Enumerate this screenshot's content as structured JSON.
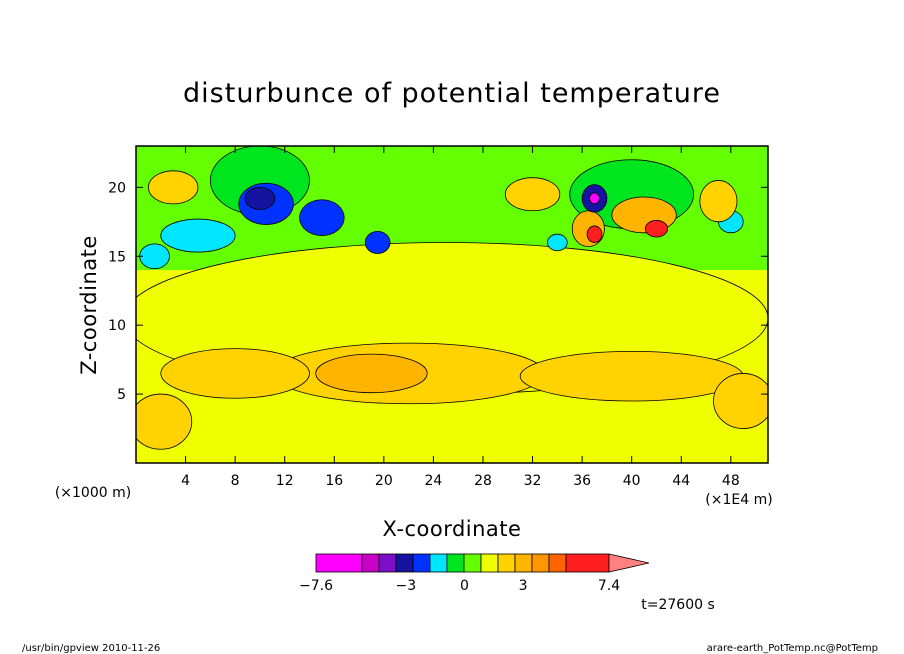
{
  "chart_data": {
    "type": "heatmap",
    "title": "disturbunce of potential temperature",
    "xlabel": "X-coordinate",
    "ylabel": "Z-coordinate",
    "x_unit": "(×1E4 m)",
    "y_unit": "(×1000 m)",
    "xlim": [
      0,
      51
    ],
    "ylim": [
      0,
      23
    ],
    "x_ticks": [
      4,
      8,
      12,
      16,
      20,
      24,
      28,
      32,
      36,
      40,
      44,
      48
    ],
    "y_ticks": [
      5,
      10,
      15,
      20
    ],
    "colorbar": {
      "colors": [
        "#ff00ff",
        "#c800c8",
        "#7d0ec8",
        "#1414a0",
        "#0032ff",
        "#00e6ff",
        "#00e61e",
        "#64ff00",
        "#f0ff00",
        "#ffd200",
        "#ffb400",
        "#ff9600",
        "#ff6400",
        "#ff1e1e",
        "#ff8080"
      ],
      "labels": [
        {
          "value": -7.6,
          "text": "−7.6"
        },
        {
          "value": -3,
          "text": "−3"
        },
        {
          "value": 0,
          "text": "0"
        },
        {
          "value": 3,
          "text": "3"
        },
        {
          "value": 7.4,
          "text": "7.4"
        }
      ]
    },
    "regions": [
      {
        "level": 0.5,
        "cx": 25,
        "cy": 10.5,
        "rx": 26,
        "ry": 5.5
      },
      {
        "level": 1.8,
        "cx": 22,
        "cy": 6.5,
        "rx": 11,
        "ry": 2.2
      },
      {
        "level": 1.8,
        "cx": 40,
        "cy": 6.3,
        "rx": 9,
        "ry": 1.8
      },
      {
        "level": 1.8,
        "cx": 8,
        "cy": 6.5,
        "rx": 6,
        "ry": 1.8
      },
      {
        "level": 3.0,
        "cx": 19,
        "cy": 6.5,
        "rx": 4.5,
        "ry": 1.4
      },
      {
        "level": 3.0,
        "cx": 49.5,
        "cy": 4.8,
        "rx": 1.6,
        "ry": 1.3
      },
      {
        "level": 1.8,
        "cx": 49,
        "cy": 4.5,
        "rx": 2.4,
        "ry": 2.0
      },
      {
        "level": 1.8,
        "cx": 2,
        "cy": 3.0,
        "rx": 2.5,
        "ry": 2.0
      },
      {
        "level": -0.6,
        "cx": 10,
        "cy": 20.5,
        "rx": 4,
        "ry": 2.5
      },
      {
        "level": -0.6,
        "cx": 40,
        "cy": 19.5,
        "rx": 5,
        "ry": 2.5
      },
      {
        "level": -1.8,
        "cx": 5,
        "cy": 16.5,
        "rx": 3,
        "ry": 1.2
      },
      {
        "level": -3.0,
        "cx": 10.5,
        "cy": 18.8,
        "rx": 2.2,
        "ry": 1.5
      },
      {
        "level": -3.0,
        "cx": 15,
        "cy": 17.8,
        "rx": 1.8,
        "ry": 1.3
      },
      {
        "level": -4.0,
        "cx": 10,
        "cy": 19.2,
        "rx": 1.2,
        "ry": 0.8
      },
      {
        "level": -3.0,
        "cx": 19.5,
        "cy": 16.0,
        "rx": 1.0,
        "ry": 0.8
      },
      {
        "level": -1.8,
        "cx": 1.5,
        "cy": 15.0,
        "rx": 1.2,
        "ry": 0.9
      },
      {
        "level": 1.8,
        "cx": 3,
        "cy": 20.0,
        "rx": 2.0,
        "ry": 1.2
      },
      {
        "level": 1.8,
        "cx": 32,
        "cy": 19.5,
        "rx": 2.2,
        "ry": 1.2
      },
      {
        "level": 3.0,
        "cx": 36.5,
        "cy": 17.0,
        "rx": 1.3,
        "ry": 1.3
      },
      {
        "level": 6.0,
        "cx": 37,
        "cy": 16.6,
        "rx": 0.6,
        "ry": 0.6
      },
      {
        "level": -4.0,
        "cx": 37,
        "cy": 19.2,
        "rx": 1.0,
        "ry": 1.0
      },
      {
        "level": -7.0,
        "cx": 37,
        "cy": 19.2,
        "rx": 0.4,
        "ry": 0.4
      },
      {
        "level": 3.0,
        "cx": 41,
        "cy": 18.0,
        "rx": 2.6,
        "ry": 1.3
      },
      {
        "level": 6.0,
        "cx": 42,
        "cy": 17.0,
        "rx": 0.9,
        "ry": 0.6
      },
      {
        "level": -2.2,
        "cx": 34,
        "cy": 16.0,
        "rx": 0.8,
        "ry": 0.6
      },
      {
        "level": -1.8,
        "cx": 48,
        "cy": 17.5,
        "rx": 1.0,
        "ry": 0.8
      },
      {
        "level": 1.8,
        "cx": 47,
        "cy": 19.0,
        "rx": 1.5,
        "ry": 1.5
      }
    ]
  },
  "footer": {
    "left": "/usr/bin/gpview   2010-11-26",
    "right": "arare-earth_PotTemp.nc@PotTemp",
    "time": "t=27600 s"
  }
}
